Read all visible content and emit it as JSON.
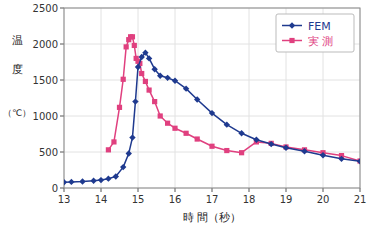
{
  "chart_data": {
    "type": "line",
    "xlabel": "時 間（秒）",
    "ylabel": [
      "温",
      "度",
      "（℃）"
    ],
    "xlim": [
      13,
      21
    ],
    "ylim": [
      0,
      2500
    ],
    "xticks": [
      13,
      14,
      15,
      16,
      17,
      18,
      19,
      20,
      21
    ],
    "yticks": [
      0,
      500,
      1000,
      1500,
      2000,
      2500
    ],
    "grid": true,
    "legend": "upper-right",
    "series": [
      {
        "name": "FEM",
        "color": "#1f3a8f",
        "marker": "diamond",
        "x": [
          13.0,
          13.2,
          13.5,
          13.8,
          14.0,
          14.2,
          14.4,
          14.6,
          14.75,
          14.85,
          14.93,
          15.0,
          15.1,
          15.2,
          15.3,
          15.45,
          15.6,
          15.8,
          16.0,
          16.3,
          16.6,
          17.0,
          17.4,
          17.8,
          18.2,
          18.6,
          19.0,
          19.5,
          20.0,
          20.5,
          21.0
        ],
        "values": [
          80,
          85,
          90,
          100,
          110,
          130,
          160,
          290,
          480,
          700,
          1200,
          1680,
          1820,
          1880,
          1800,
          1650,
          1560,
          1530,
          1490,
          1380,
          1230,
          1040,
          880,
          760,
          670,
          610,
          560,
          510,
          455,
          405,
          370
        ]
      },
      {
        "name": "実 測",
        "color": "#e0407f",
        "marker": "square",
        "x": [
          14.2,
          14.35,
          14.5,
          14.6,
          14.68,
          14.75,
          14.8,
          14.85,
          14.9,
          14.95,
          15.0,
          15.05,
          15.1,
          15.2,
          15.3,
          15.45,
          15.6,
          15.8,
          16.0,
          16.3,
          16.6,
          17.0,
          17.4,
          17.8,
          18.2,
          18.6,
          19.0,
          19.5,
          20.0,
          20.5,
          21.0
        ],
        "values": [
          530,
          640,
          1120,
          1510,
          1960,
          2060,
          2100,
          2100,
          1980,
          1800,
          1760,
          1730,
          1590,
          1480,
          1360,
          1200,
          1000,
          900,
          830,
          760,
          680,
          580,
          520,
          490,
          640,
          620,
          570,
          530,
          490,
          450,
          375
        ]
      }
    ]
  }
}
